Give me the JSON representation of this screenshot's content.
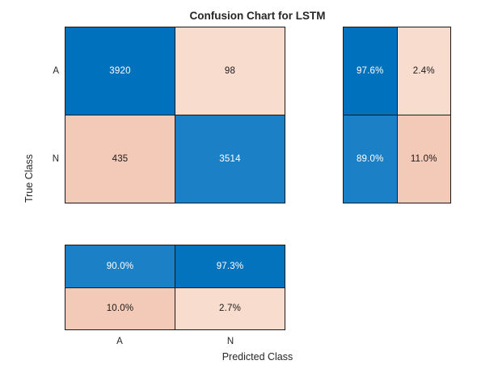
{
  "title": "Confusion Chart for LSTM",
  "x_axis": {
    "label": "Predicted Class",
    "ticks": [
      "A",
      "N"
    ]
  },
  "y_axis": {
    "label": "True Class",
    "ticks": [
      "A",
      "N"
    ]
  },
  "colors": {
    "blue_strong": "#0072BD",
    "blue_light": "#1B80C5",
    "blue_medium": "#0473BD",
    "pink_light": "#F8DCCE",
    "pink_dark": "#F3C9B8",
    "text_dark": "#1A1A1A",
    "text_light": "#FFFFFF",
    "border": "#1A1A1A"
  },
  "matrix_cells": [
    {
      "value": "3920",
      "bg": "#0072BD",
      "fg": "#FFFFFF"
    },
    {
      "value": "98",
      "bg": "#F8DCCE",
      "fg": "#1A1A1A"
    },
    {
      "value": "435",
      "bg": "#F3C9B8",
      "fg": "#1A1A1A"
    },
    {
      "value": "3514",
      "bg": "#1B80C5",
      "fg": "#FFFFFF"
    }
  ],
  "row_summary_cells": [
    {
      "value": "97.6%",
      "bg": "#0072BD",
      "fg": "#FFFFFF"
    },
    {
      "value": "2.4%",
      "bg": "#F8DCCE",
      "fg": "#1A1A1A"
    },
    {
      "value": "89.0%",
      "bg": "#1B80C5",
      "fg": "#FFFFFF"
    },
    {
      "value": "11.0%",
      "bg": "#F3C9B8",
      "fg": "#1A1A1A"
    }
  ],
  "col_summary_cells": [
    {
      "value": "90.0%",
      "bg": "#1B80C5",
      "fg": "#FFFFFF"
    },
    {
      "value": "97.3%",
      "bg": "#0473BD",
      "fg": "#FFFFFF"
    },
    {
      "value": "10.0%",
      "bg": "#F3C9B8",
      "fg": "#1A1A1A"
    },
    {
      "value": "2.7%",
      "bg": "#F8DCCE",
      "fg": "#1A1A1A"
    }
  ],
  "chart_data": {
    "type": "heatmap",
    "title": "Confusion Chart for LSTM",
    "xlabel": "Predicted Class",
    "ylabel": "True Class",
    "classes": [
      "A",
      "N"
    ],
    "matrix": [
      [
        3920,
        98
      ],
      [
        435,
        3514
      ]
    ],
    "row_summary_pct": [
      [
        97.6,
        2.4
      ],
      [
        89.0,
        11.0
      ]
    ],
    "column_summary_pct": [
      [
        90.0,
        97.3
      ],
      [
        10.0,
        2.7
      ]
    ],
    "legend_position": "none",
    "grid": "cell borders on",
    "notes": "Confusion matrix with row-normalized summary panel on the right and column-normalized summary panel at the bottom"
  }
}
